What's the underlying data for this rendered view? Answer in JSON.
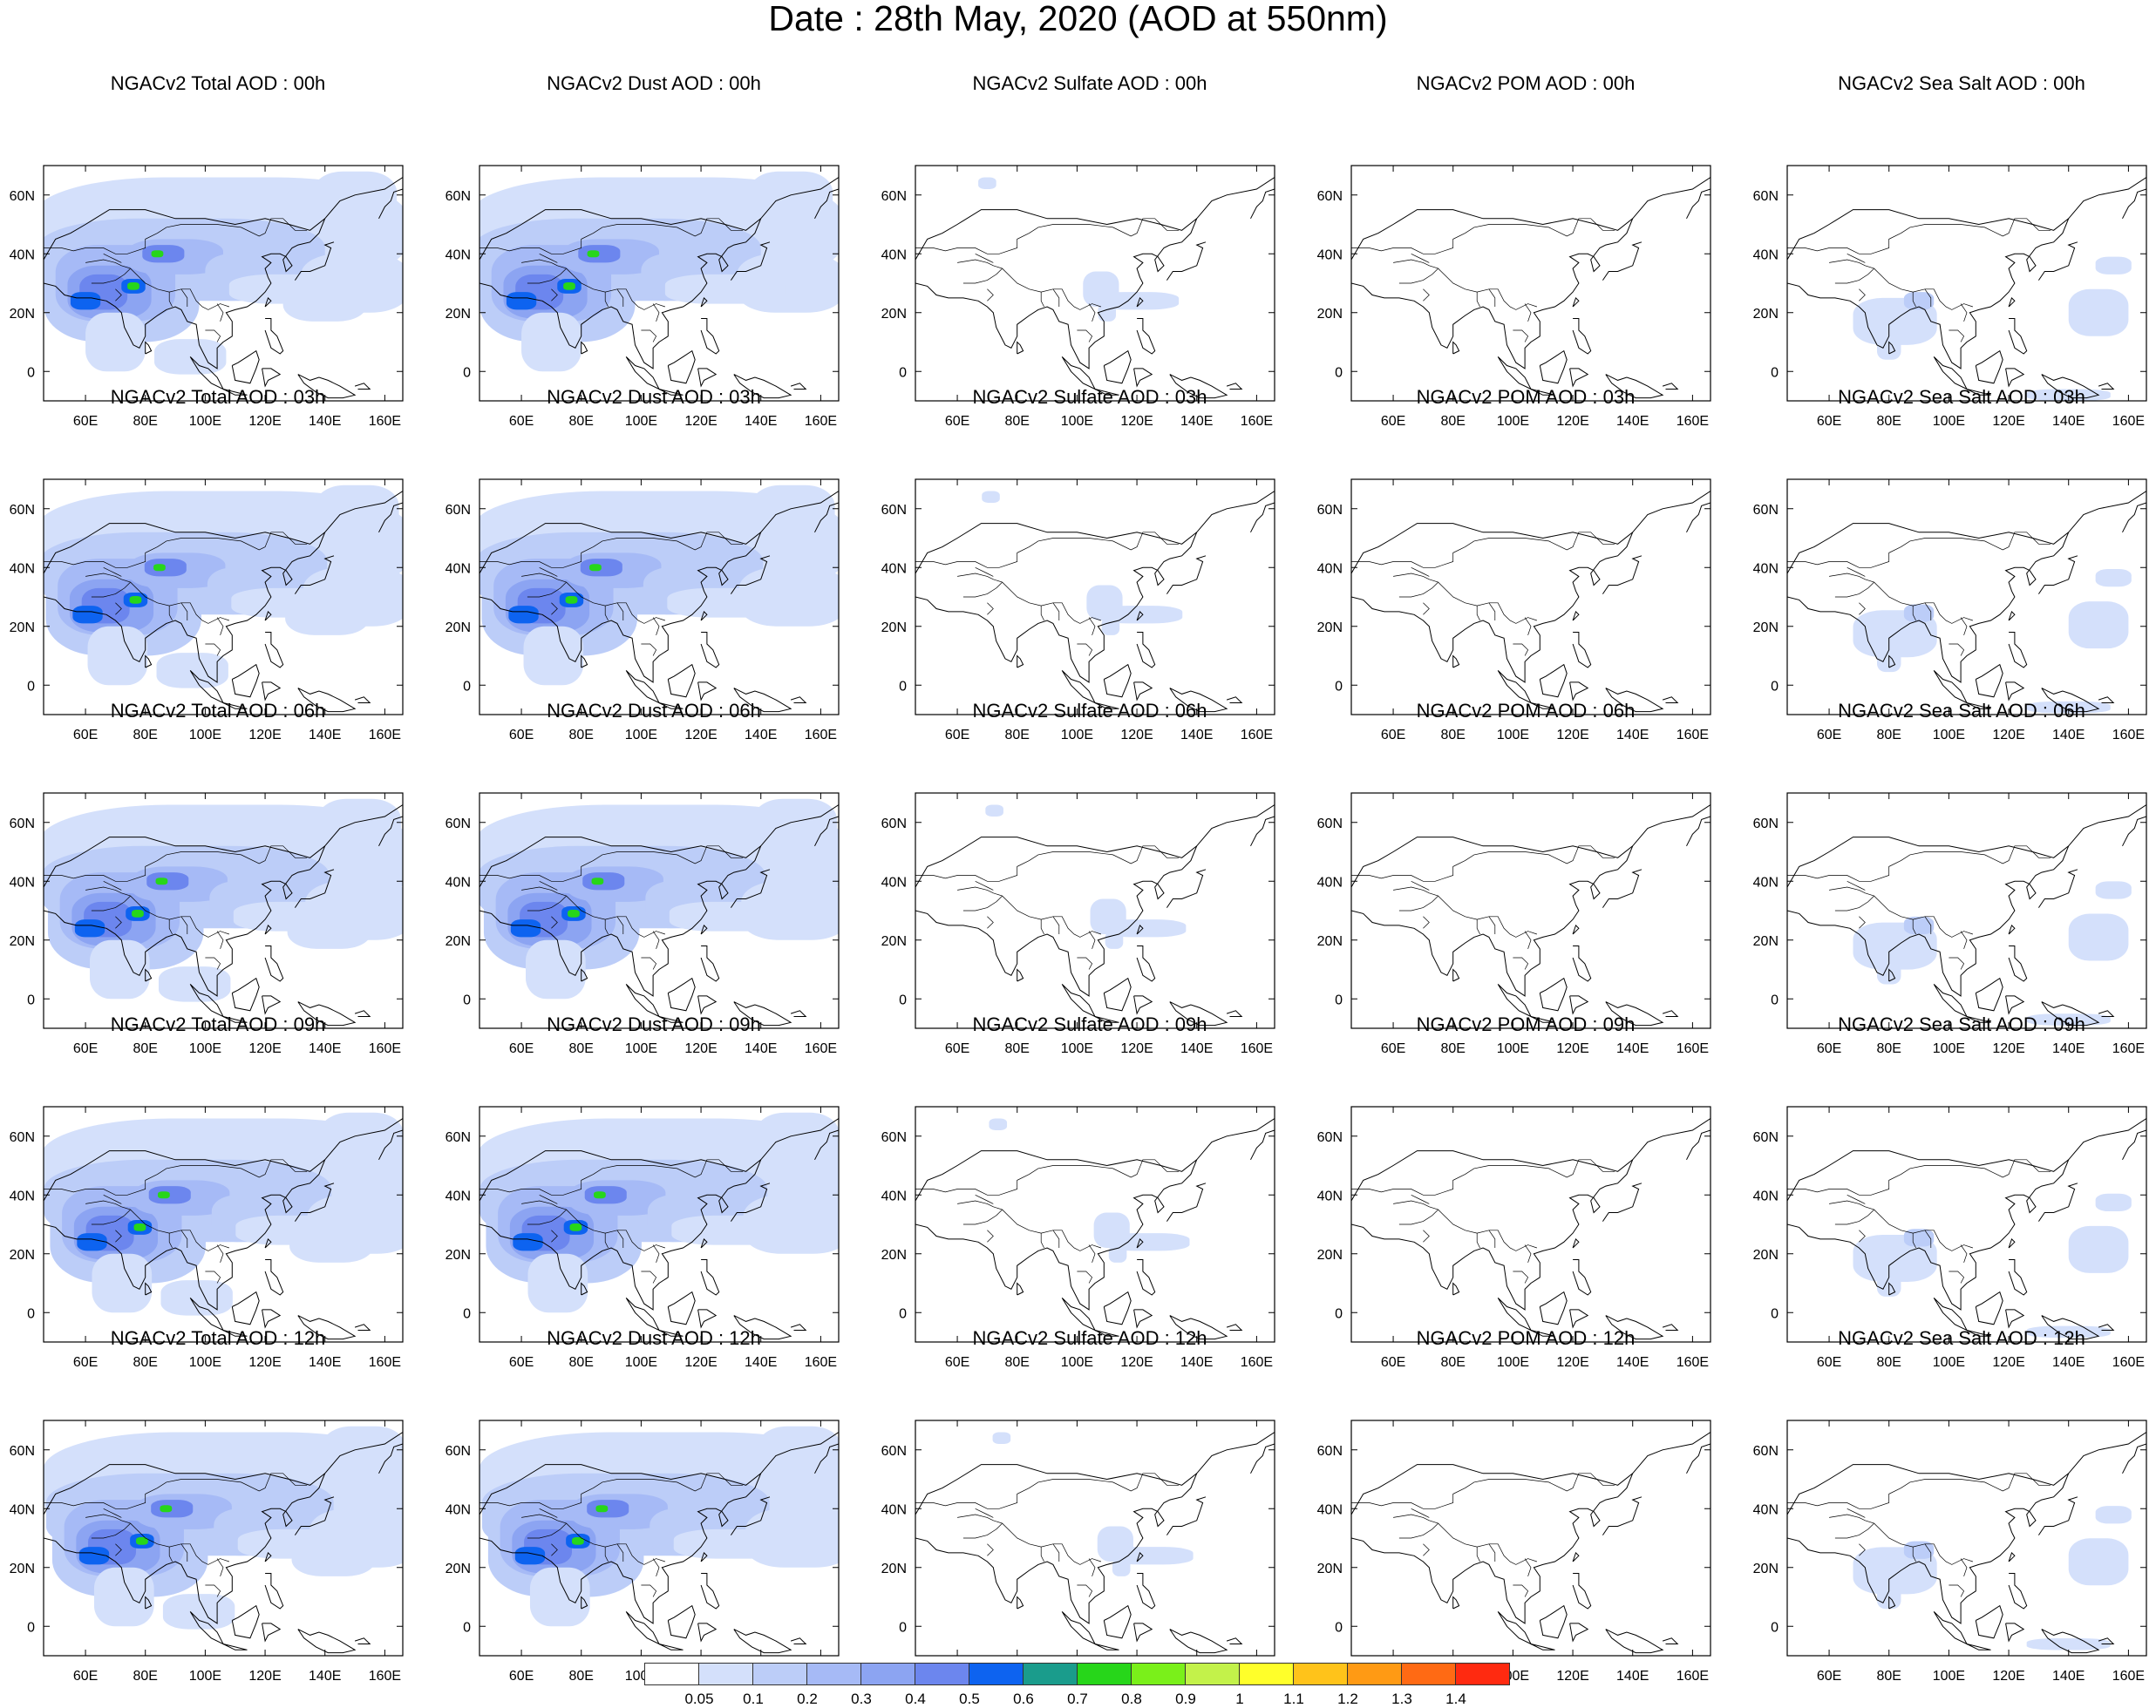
{
  "title": "Date : 28th May, 2020 (AOD at 550nm)",
  "axes": {
    "lon_ticks": [
      "60E",
      "80E",
      "100E",
      "120E",
      "140E",
      "160E"
    ],
    "lat_ticks": [
      "60N",
      "40N",
      "20N",
      "0"
    ]
  },
  "panels": [
    [
      "NGACv2 Total AOD : 00h",
      "NGACv2 Dust AOD : 00h",
      "NGACv2 Sulfate AOD : 00h",
      "NGACv2 POM AOD : 00h",
      "NGACv2 Sea Salt AOD : 00h"
    ],
    [
      "NGACv2 Total AOD : 03h",
      "NGACv2 Dust AOD : 03h",
      "NGACv2 Sulfate AOD : 03h",
      "NGACv2 POM AOD : 03h",
      "NGACv2 Sea Salt AOD : 03h"
    ],
    [
      "NGACv2 Total AOD : 06h",
      "NGACv2 Dust AOD : 06h",
      "NGACv2 Sulfate AOD : 06h",
      "NGACv2 POM AOD : 06h",
      "NGACv2 Sea Salt AOD : 06h"
    ],
    [
      "NGACv2 Total AOD : 09h",
      "NGACv2 Dust AOD : 09h",
      "NGACv2 Sulfate AOD : 09h",
      "NGACv2 POM AOD : 09h",
      "NGACv2 Sea Salt  AOD : 09h"
    ],
    [
      "NGACv2 Total AOD  : 12h",
      "NGACv2 Dust AOD : 12h",
      "NGACv2 Sulfate AOD : 12h",
      "NGACv2 POM  AOD : 12h",
      "NGACv2 Sea Salt  AOD : 12h"
    ]
  ],
  "legend": {
    "labels": [
      "0.05",
      "0.1",
      "0.2",
      "0.3",
      "0.4",
      "0.5",
      "0.6",
      "0.7",
      "0.8",
      "0.9",
      "1",
      "1.1",
      "1.2",
      "1.3",
      "1.4"
    ],
    "colors": [
      "#ffffff",
      "#d4e0fb",
      "#bccdf8",
      "#a6baf6",
      "#8ca4f2",
      "#6c86ee",
      "#0d63f0",
      "#1a9c8c",
      "#27d61a",
      "#7af01a",
      "#c3f24a",
      "#ffff2a",
      "#ffc31a",
      "#ff9a14",
      "#ff6a14",
      "#ff2a10"
    ]
  }
}
